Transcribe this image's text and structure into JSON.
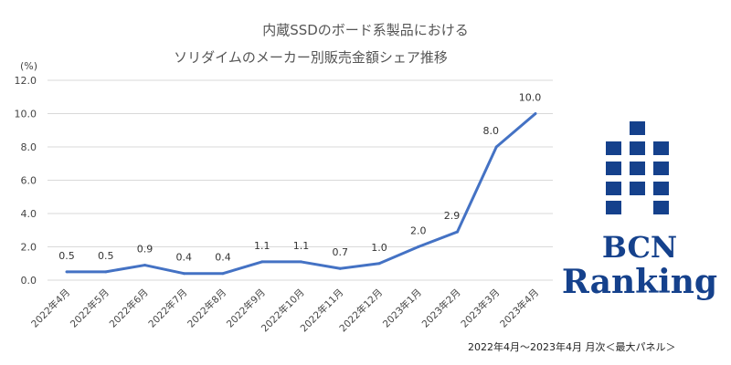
{
  "chart_data": {
    "type": "line",
    "title": "内蔵SSDのボード系製品における",
    "subtitle": "ソリダイムのメーカー別販売金額シェア推移",
    "ylabel": "(%)",
    "xlabel": "",
    "ylim": [
      0,
      12
    ],
    "yticks": [
      "0.0",
      "2.0",
      "4.0",
      "6.0",
      "8.0",
      "10.0",
      "12.0"
    ],
    "grid": true,
    "categories": [
      "2022年4月",
      "2022年5月",
      "2022年6月",
      "2022年7月",
      "2022年8月",
      "2022年9月",
      "2022年10月",
      "2022年11月",
      "2022年12月",
      "2023年1月",
      "2023年2月",
      "2023年3月",
      "2023年4月"
    ],
    "series": [
      {
        "name": "ソリダイム",
        "values": [
          0.5,
          0.5,
          0.9,
          0.4,
          0.4,
          1.1,
          1.1,
          0.7,
          1.0,
          2.0,
          2.9,
          8.0,
          10.0
        ],
        "labels": [
          "0.5",
          "0.5",
          "0.9",
          "0.4",
          "0.4",
          "1.1",
          "1.1",
          "0.7",
          "1.0",
          "2.0",
          "2.9",
          "8.0",
          "10.0"
        ],
        "color": "#4472c4"
      }
    ]
  },
  "footnote": "2022年4月～2023年4月 月次＜最大パネル＞",
  "logo": {
    "line1": "BCN",
    "line2": "Ranking",
    "color": "#15418c"
  }
}
